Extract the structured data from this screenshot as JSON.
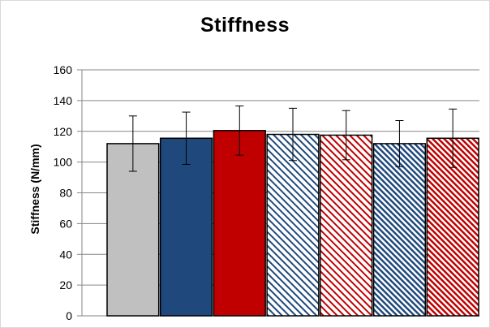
{
  "chart_data": {
    "type": "bar",
    "title": "Stiffness",
    "xlabel": "",
    "ylabel": "Stiffness (N/mm)",
    "ylim": [
      0,
      160
    ],
    "yticks": [
      0,
      20,
      40,
      60,
      80,
      100,
      120,
      140,
      160
    ],
    "grid": true,
    "legend": "none",
    "values": [
      112,
      115.5,
      120.5,
      118,
      117.5,
      112,
      115.5
    ],
    "error_bars": [
      18,
      17,
      16,
      17,
      16,
      15,
      19
    ],
    "bar_styles": [
      {
        "fill": "#c0c0c0",
        "pattern": "solid"
      },
      {
        "fill": "#1f497d",
        "pattern": "solid"
      },
      {
        "fill": "#c00000",
        "pattern": "solid"
      },
      {
        "fill": "#1f497d",
        "pattern": "light-diagonal"
      },
      {
        "fill": "#c00000",
        "pattern": "light-diagonal"
      },
      {
        "fill": "#1f497d",
        "pattern": "dense-diagonal"
      },
      {
        "fill": "#c00000",
        "pattern": "dense-diagonal"
      }
    ]
  }
}
